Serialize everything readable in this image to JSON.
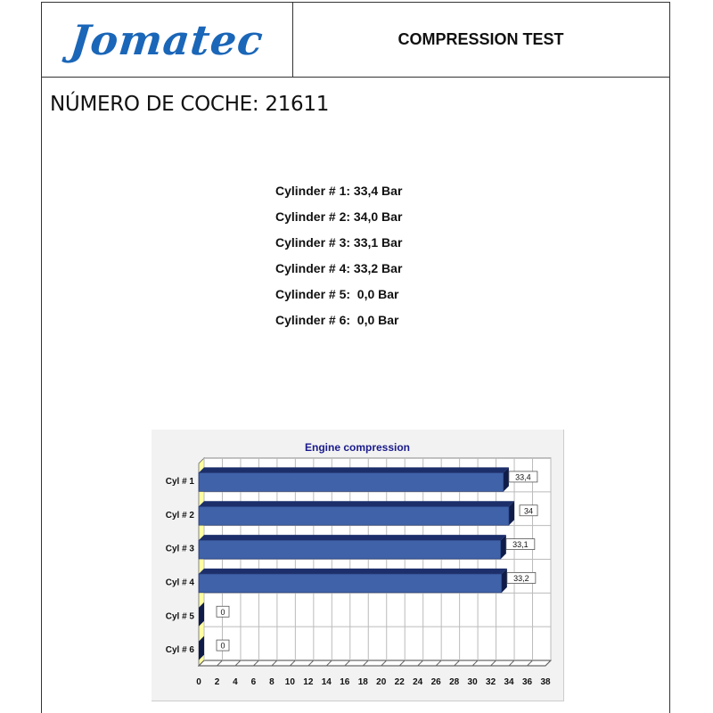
{
  "header": {
    "logo_text": "Jomatec",
    "title": "COMPRESSION TEST"
  },
  "car_number_label": "NÚMERO DE COCHE: 21611",
  "readings": [
    "Cylinder # 1: 33,4 Bar",
    "Cylinder # 2: 34,0 Bar",
    "Cylinder # 3: 33,1 Bar",
    "Cylinder # 4: 33,2 Bar",
    "Cylinder # 5:  0,0 Bar",
    "Cylinder # 6:  0,0 Bar"
  ],
  "chart_data": {
    "type": "bar",
    "orientation": "horizontal",
    "title": "Engine compression",
    "categories": [
      "Cyl # 1",
      "Cyl # 2",
      "Cyl # 3",
      "Cyl # 4",
      "Cyl # 5",
      "Cyl # 6"
    ],
    "values": [
      33.4,
      34,
      33.1,
      33.2,
      0,
      0
    ],
    "data_labels": [
      "33,4",
      "34",
      "33,1",
      "33,2",
      "0",
      "0"
    ],
    "xlim": [
      0,
      38
    ],
    "xticks": [
      0,
      2,
      4,
      6,
      8,
      10,
      12,
      14,
      16,
      18,
      20,
      22,
      24,
      26,
      28,
      30,
      32,
      34,
      36,
      38
    ],
    "grid": true,
    "colors": {
      "bar": "#3f62a8",
      "bar_top": "#1c2f6b",
      "bar_side": "#0f1c4a",
      "title": "#1a1a8c",
      "wall": "#ffffa0"
    }
  }
}
